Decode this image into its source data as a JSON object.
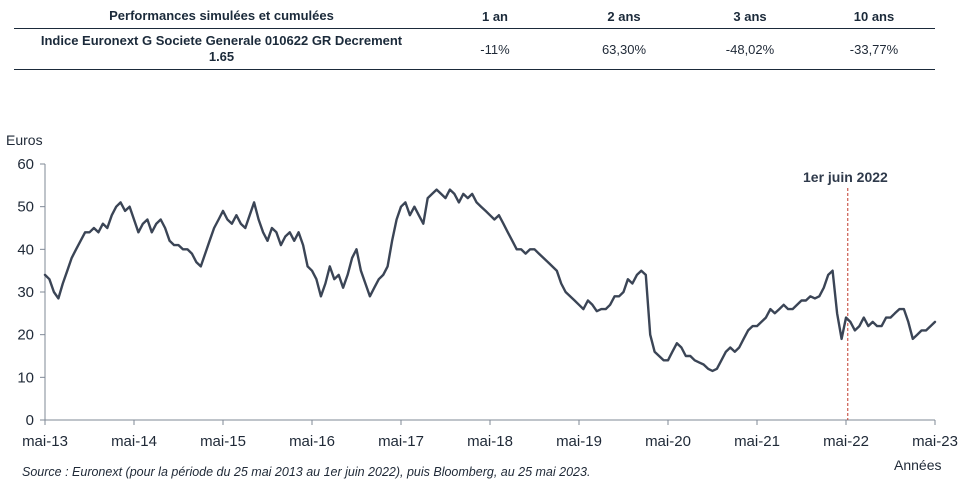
{
  "table": {
    "header": {
      "label": "Performances simulées et cumulées",
      "periods": [
        "1 an",
        "2 ans",
        "3 ans",
        "10 ans"
      ]
    },
    "row": {
      "name_line1": "Indice Euronext G Societe Generale 010622 GR Decrement",
      "name_line2": "1.65",
      "values": [
        "-11%",
        "63,30%",
        "-48,02%",
        "-33,77%"
      ]
    }
  },
  "chart_data": {
    "type": "line",
    "ylabel": "Euros",
    "xlabel": "Années",
    "ylim": [
      0,
      60
    ],
    "yticks": [
      0,
      10,
      20,
      30,
      40,
      50,
      60
    ],
    "x_ticks": [
      "mai-13",
      "mai-14",
      "mai-15",
      "mai-16",
      "mai-17",
      "mai-18",
      "mai-19",
      "mai-20",
      "mai-21",
      "mai-22",
      "mai-23"
    ],
    "grid": false,
    "line_color": "#3b4556",
    "annotation": {
      "label": "1er juin 2022",
      "x": 2022.02,
      "color": "#c0392b"
    },
    "series": [
      {
        "points": [
          [
            2013.0,
            34
          ],
          [
            2013.05,
            33
          ],
          [
            2013.1,
            30
          ],
          [
            2013.15,
            28.5
          ],
          [
            2013.2,
            32
          ],
          [
            2013.25,
            35
          ],
          [
            2013.3,
            38
          ],
          [
            2013.35,
            40
          ],
          [
            2013.4,
            42
          ],
          [
            2013.45,
            44
          ],
          [
            2013.5,
            44
          ],
          [
            2013.55,
            45
          ],
          [
            2013.6,
            44
          ],
          [
            2013.65,
            46
          ],
          [
            2013.7,
            45
          ],
          [
            2013.75,
            48
          ],
          [
            2013.8,
            50
          ],
          [
            2013.85,
            51
          ],
          [
            2013.9,
            49
          ],
          [
            2013.95,
            50
          ],
          [
            2014.0,
            47
          ],
          [
            2014.05,
            44
          ],
          [
            2014.1,
            46
          ],
          [
            2014.15,
            47
          ],
          [
            2014.2,
            44
          ],
          [
            2014.25,
            46
          ],
          [
            2014.3,
            47
          ],
          [
            2014.35,
            45
          ],
          [
            2014.4,
            42
          ],
          [
            2014.45,
            41
          ],
          [
            2014.5,
            41
          ],
          [
            2014.55,
            40
          ],
          [
            2014.6,
            40
          ],
          [
            2014.65,
            39
          ],
          [
            2014.7,
            37
          ],
          [
            2014.75,
            36
          ],
          [
            2014.8,
            39
          ],
          [
            2014.85,
            42
          ],
          [
            2014.9,
            45
          ],
          [
            2014.95,
            47
          ],
          [
            2015.0,
            49
          ],
          [
            2015.05,
            47
          ],
          [
            2015.1,
            46
          ],
          [
            2015.15,
            48
          ],
          [
            2015.2,
            46
          ],
          [
            2015.25,
            45
          ],
          [
            2015.3,
            48
          ],
          [
            2015.35,
            51
          ],
          [
            2015.4,
            47
          ],
          [
            2015.45,
            44
          ],
          [
            2015.5,
            42
          ],
          [
            2015.55,
            45
          ],
          [
            2015.6,
            44
          ],
          [
            2015.65,
            41
          ],
          [
            2015.7,
            43
          ],
          [
            2015.75,
            44
          ],
          [
            2015.8,
            42
          ],
          [
            2015.85,
            44
          ],
          [
            2015.9,
            41
          ],
          [
            2015.95,
            36
          ],
          [
            2016.0,
            35
          ],
          [
            2016.05,
            33
          ],
          [
            2016.1,
            29
          ],
          [
            2016.15,
            32
          ],
          [
            2016.2,
            36
          ],
          [
            2016.25,
            33
          ],
          [
            2016.3,
            34
          ],
          [
            2016.35,
            31
          ],
          [
            2016.4,
            34
          ],
          [
            2016.45,
            38
          ],
          [
            2016.5,
            40
          ],
          [
            2016.55,
            35
          ],
          [
            2016.6,
            32
          ],
          [
            2016.65,
            29
          ],
          [
            2016.7,
            31
          ],
          [
            2016.75,
            33
          ],
          [
            2016.8,
            34
          ],
          [
            2016.85,
            36
          ],
          [
            2016.9,
            42
          ],
          [
            2016.95,
            47
          ],
          [
            2017.0,
            50
          ],
          [
            2017.05,
            51
          ],
          [
            2017.1,
            48
          ],
          [
            2017.15,
            50
          ],
          [
            2017.2,
            48
          ],
          [
            2017.25,
            46
          ],
          [
            2017.3,
            52
          ],
          [
            2017.35,
            53
          ],
          [
            2017.4,
            54
          ],
          [
            2017.45,
            53
          ],
          [
            2017.5,
            52
          ],
          [
            2017.55,
            54
          ],
          [
            2017.6,
            53
          ],
          [
            2017.65,
            51
          ],
          [
            2017.7,
            53
          ],
          [
            2017.75,
            52
          ],
          [
            2017.8,
            53
          ],
          [
            2017.85,
            51
          ],
          [
            2017.9,
            50
          ],
          [
            2017.95,
            49
          ],
          [
            2018.0,
            48
          ],
          [
            2018.05,
            47
          ],
          [
            2018.1,
            48
          ],
          [
            2018.15,
            46
          ],
          [
            2018.2,
            44
          ],
          [
            2018.25,
            42
          ],
          [
            2018.3,
            40
          ],
          [
            2018.35,
            40
          ],
          [
            2018.4,
            39
          ],
          [
            2018.45,
            40
          ],
          [
            2018.5,
            40
          ],
          [
            2018.55,
            39
          ],
          [
            2018.6,
            38
          ],
          [
            2018.65,
            37
          ],
          [
            2018.7,
            36
          ],
          [
            2018.75,
            35
          ],
          [
            2018.8,
            32
          ],
          [
            2018.85,
            30
          ],
          [
            2018.9,
            29
          ],
          [
            2018.95,
            28
          ],
          [
            2019.0,
            27
          ],
          [
            2019.05,
            26
          ],
          [
            2019.1,
            28
          ],
          [
            2019.15,
            27
          ],
          [
            2019.2,
            25.5
          ],
          [
            2019.25,
            26
          ],
          [
            2019.3,
            26
          ],
          [
            2019.35,
            27
          ],
          [
            2019.4,
            29
          ],
          [
            2019.45,
            29
          ],
          [
            2019.5,
            30
          ],
          [
            2019.55,
            33
          ],
          [
            2019.6,
            32
          ],
          [
            2019.65,
            34
          ],
          [
            2019.7,
            35
          ],
          [
            2019.75,
            34
          ],
          [
            2019.8,
            20
          ],
          [
            2019.85,
            16
          ],
          [
            2019.9,
            15
          ],
          [
            2019.95,
            14
          ],
          [
            2020.0,
            14
          ],
          [
            2020.05,
            16
          ],
          [
            2020.1,
            18
          ],
          [
            2020.15,
            17
          ],
          [
            2020.2,
            15
          ],
          [
            2020.25,
            15
          ],
          [
            2020.3,
            14
          ],
          [
            2020.35,
            13.5
          ],
          [
            2020.4,
            13
          ],
          [
            2020.45,
            12
          ],
          [
            2020.5,
            11.5
          ],
          [
            2020.55,
            12
          ],
          [
            2020.6,
            14
          ],
          [
            2020.65,
            16
          ],
          [
            2020.7,
            17
          ],
          [
            2020.75,
            16
          ],
          [
            2020.8,
            17
          ],
          [
            2020.85,
            19
          ],
          [
            2020.9,
            21
          ],
          [
            2020.95,
            22
          ],
          [
            2021.0,
            22
          ],
          [
            2021.05,
            23
          ],
          [
            2021.1,
            24
          ],
          [
            2021.15,
            26
          ],
          [
            2021.2,
            25
          ],
          [
            2021.25,
            26
          ],
          [
            2021.3,
            27
          ],
          [
            2021.35,
            26
          ],
          [
            2021.4,
            26
          ],
          [
            2021.45,
            27
          ],
          [
            2021.5,
            28
          ],
          [
            2021.55,
            28
          ],
          [
            2021.6,
            29
          ],
          [
            2021.65,
            28.5
          ],
          [
            2021.7,
            29
          ],
          [
            2021.75,
            31
          ],
          [
            2021.8,
            34
          ],
          [
            2021.85,
            35
          ],
          [
            2021.9,
            25
          ],
          [
            2021.95,
            19
          ],
          [
            2022.0,
            24
          ],
          [
            2022.05,
            23
          ],
          [
            2022.1,
            21
          ],
          [
            2022.15,
            22
          ],
          [
            2022.2,
            24
          ],
          [
            2022.25,
            22
          ],
          [
            2022.3,
            23
          ],
          [
            2022.35,
            22
          ],
          [
            2022.4,
            22
          ],
          [
            2022.45,
            24
          ],
          [
            2022.5,
            24
          ],
          [
            2022.55,
            25
          ],
          [
            2022.6,
            26
          ],
          [
            2022.65,
            26
          ],
          [
            2022.7,
            23
          ],
          [
            2022.75,
            19
          ],
          [
            2022.8,
            20
          ],
          [
            2022.85,
            21
          ],
          [
            2022.9,
            21
          ],
          [
            2022.95,
            22
          ],
          [
            2023.0,
            23
          ]
        ]
      }
    ]
  },
  "source": "Source : Euronext (pour la période du 25 mai 2013 au 1er juin 2022), puis Bloomberg, au 25 mai 2023."
}
